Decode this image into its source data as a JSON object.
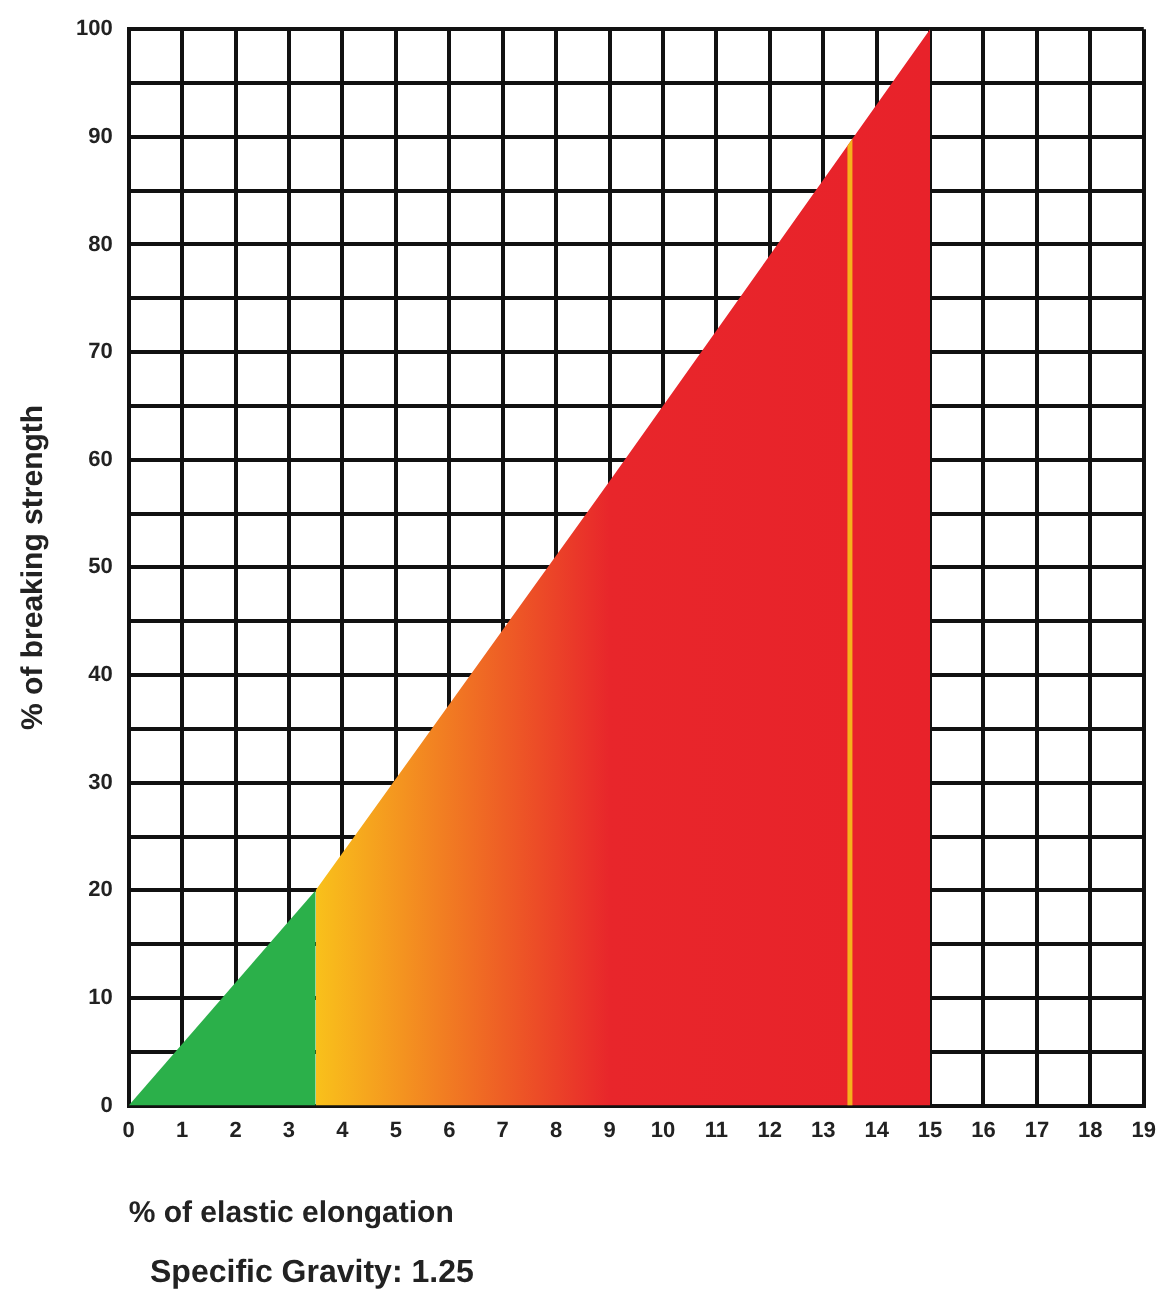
{
  "chart_data": {
    "type": "area",
    "xlabel": "% of elastic elongation",
    "ylabel": "% of breaking strength",
    "xlim": [
      0,
      19
    ],
    "xticks": [
      0,
      1,
      2,
      3,
      4,
      5,
      6,
      7,
      8,
      9,
      10,
      11,
      12,
      13,
      14,
      15,
      16,
      17,
      18,
      19
    ],
    "ylim": [
      0,
      100
    ],
    "yticks": [
      0,
      {
        "value": 5,
        "label": null
      },
      10,
      {
        "value": 15,
        "label": null
      },
      20,
      {
        "value": 25,
        "label": null
      },
      30,
      {
        "value": 35,
        "label": null
      },
      40,
      {
        "value": 45,
        "label": null
      },
      50,
      {
        "value": 55,
        "label": null
      },
      60,
      {
        "value": 65,
        "label": null
      },
      70,
      {
        "value": 75,
        "label": null
      },
      80,
      {
        "value": 85,
        "label": null
      },
      90,
      {
        "value": 95,
        "label": null
      },
      100
    ],
    "grid": true,
    "legend": false,
    "series": [
      {
        "x": [
          0,
          3.5
        ],
        "values": [
          0,
          20
        ],
        "color": "#2bb04a"
      },
      {
        "x": [
          3.5,
          9,
          15
        ],
        "values": [
          20,
          58,
          100
        ],
        "colors": [
          "#f9c11b",
          "#e8262b",
          "#e8222a"
        ],
        "color": "#e8222a"
      }
    ],
    "ref_lines": [
      {
        "axis": "x",
        "value": 13.5,
        "color": "#f5b21c"
      }
    ],
    "annotations": [
      "Specific Gravity: 1.25"
    ]
  }
}
